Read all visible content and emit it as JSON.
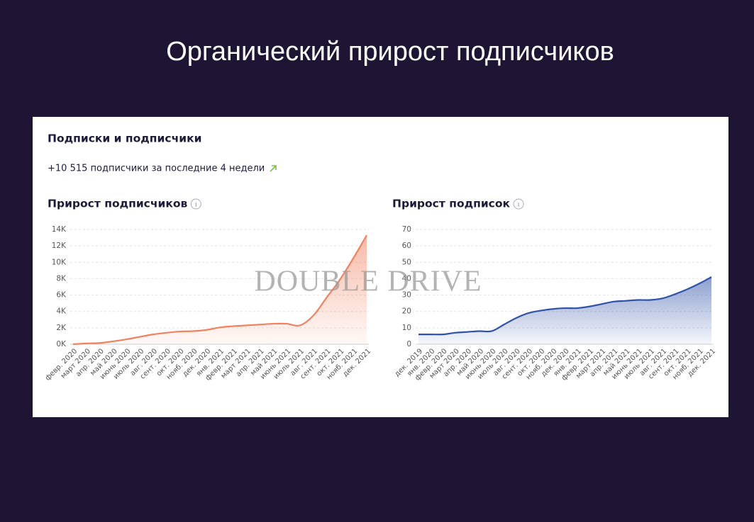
{
  "slide_title": "Органический прирост подписчиков",
  "panel_title": "Подписки и подписчики",
  "summary": "+10 515 подписчики за последние 4 недели",
  "watermark": "DOUBLE DRIVE",
  "chart_data": [
    {
      "type": "line",
      "title": "Прирост подписчиков",
      "color": "#f0825f",
      "area": true,
      "grid": true,
      "categories": [
        "февр. 2020",
        "март 2020",
        "апр. 2020",
        "май 2020",
        "июнь 2020",
        "июль 2020",
        "авг. 2020",
        "сент. 2020",
        "окт. 2020",
        "нояб. 2020",
        "дек. 2020",
        "янв. 2021",
        "февр. 2021",
        "март 2021",
        "апр. 2021",
        "май 2021",
        "июнь 2021",
        "июль 2021",
        "авг. 2021",
        "сент. 2021",
        "окт. 2021",
        "нояб. 2021",
        "дек. 2021"
      ],
      "values": [
        0,
        100,
        150,
        350,
        600,
        900,
        1200,
        1400,
        1550,
        1600,
        1750,
        2050,
        2200,
        2300,
        2400,
        2500,
        2500,
        2300,
        3500,
        5700,
        7900,
        10500,
        13300
      ],
      "ylim": [
        0,
        14000
      ],
      "yticks": [
        {
          "value": 0,
          "label": "0K"
        },
        {
          "value": 2000,
          "label": "2K"
        },
        {
          "value": 4000,
          "label": "4K"
        },
        {
          "value": 6000,
          "label": "6K"
        },
        {
          "value": 8000,
          "label": "8K"
        },
        {
          "value": 10000,
          "label": "10K"
        },
        {
          "value": 12000,
          "label": "12K"
        },
        {
          "value": 14000,
          "label": "14K"
        }
      ]
    },
    {
      "type": "line",
      "title": "Прирост подписок",
      "color": "#2f51a8",
      "area": true,
      "grid": true,
      "categories": [
        "дек. 2019",
        "янв. 2020",
        "февр. 2020",
        "март 2020",
        "апр. 2020",
        "май 2020",
        "июнь 2020",
        "июль 2020",
        "авг. 2020",
        "сент. 2020",
        "окт. 2020",
        "нояб. 2020",
        "дек. 2020",
        "янв. 2021",
        "февр. 2021",
        "март 2021",
        "апр. 2021",
        "май 2021",
        "июнь 2021",
        "июль 2021",
        "авг. 2021",
        "сент. 2021",
        "окт. 2021",
        "нояб. 2021",
        "дек. 2021"
      ],
      "values": [
        6,
        6,
        6,
        7,
        7.5,
        8,
        8,
        12,
        16,
        19,
        20.5,
        21.5,
        22,
        22,
        23,
        24.5,
        26,
        26.5,
        27,
        27,
        28,
        30.5,
        33.5,
        37,
        41
      ],
      "ylim": [
        0,
        70
      ],
      "yticks": [
        0,
        10,
        20,
        30,
        40,
        50,
        60,
        70
      ]
    }
  ]
}
